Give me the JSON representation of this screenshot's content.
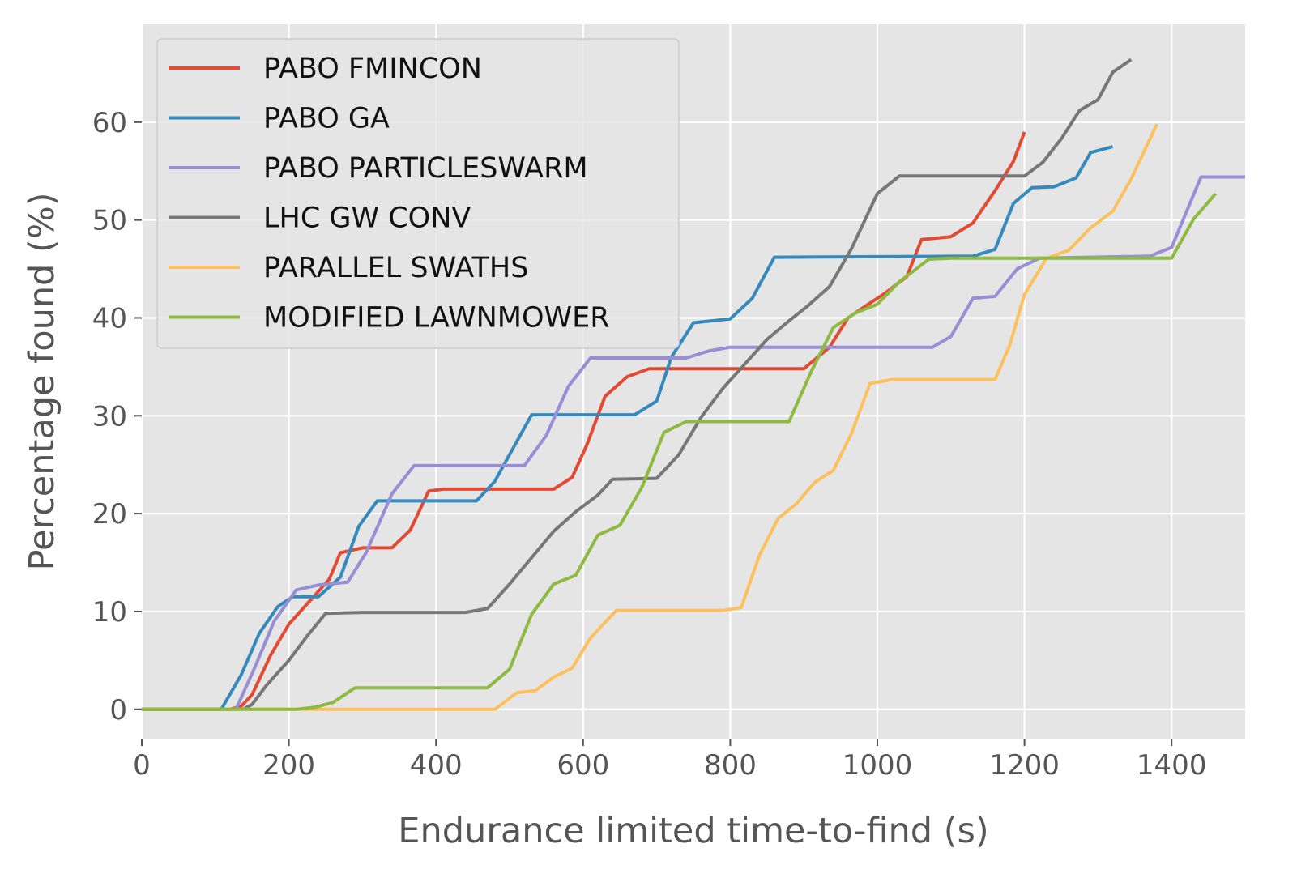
{
  "chart_data": {
    "type": "line",
    "title": "",
    "xlabel": "Endurance limited time-to-find (s)",
    "ylabel": "Percentage found (%)",
    "xlim": [
      0,
      1500
    ],
    "ylim": [
      -3,
      70
    ],
    "xticks": [
      0,
      200,
      400,
      600,
      800,
      1000,
      1200,
      1400
    ],
    "yticks": [
      0,
      10,
      20,
      30,
      40,
      50,
      60
    ],
    "grid": true,
    "style": "ggplot",
    "legend_position": "upper-left",
    "colors": {
      "background": "#e5e5e5",
      "grid": "#ffffff",
      "tick_text": "#555555",
      "label_text": "#555555"
    },
    "series": [
      {
        "name": "PABO FMINCON",
        "color": "#e24a33",
        "points": [
          [
            0,
            0
          ],
          [
            120,
            0
          ],
          [
            135,
            0.3
          ],
          [
            150,
            1.5
          ],
          [
            175,
            5.5
          ],
          [
            200,
            8.7
          ],
          [
            230,
            11.2
          ],
          [
            255,
            13.3
          ],
          [
            270,
            16
          ],
          [
            300,
            16.5
          ],
          [
            340,
            16.5
          ],
          [
            365,
            18.3
          ],
          [
            390,
            22.3
          ],
          [
            410,
            22.5
          ],
          [
            560,
            22.5
          ],
          [
            585,
            23.7
          ],
          [
            605,
            27
          ],
          [
            630,
            32
          ],
          [
            660,
            34
          ],
          [
            690,
            34.8
          ],
          [
            900,
            34.8
          ],
          [
            935,
            37
          ],
          [
            960,
            40
          ],
          [
            990,
            41.5
          ],
          [
            1010,
            42.5
          ],
          [
            1040,
            44.2
          ],
          [
            1060,
            48
          ],
          [
            1100,
            48.3
          ],
          [
            1130,
            49.7
          ],
          [
            1160,
            53
          ],
          [
            1185,
            56
          ],
          [
            1200,
            59
          ]
        ]
      },
      {
        "name": "PABO GA",
        "color": "#348abd",
        "points": [
          [
            0,
            0
          ],
          [
            108,
            0
          ],
          [
            135,
            3.5
          ],
          [
            160,
            7.8
          ],
          [
            185,
            10.5
          ],
          [
            205,
            11.5
          ],
          [
            240,
            11.5
          ],
          [
            270,
            13.5
          ],
          [
            295,
            18.7
          ],
          [
            320,
            21.3
          ],
          [
            455,
            21.3
          ],
          [
            480,
            23.3
          ],
          [
            530,
            30.1
          ],
          [
            670,
            30.1
          ],
          [
            700,
            31.5
          ],
          [
            720,
            36
          ],
          [
            750,
            39.5
          ],
          [
            800,
            39.9
          ],
          [
            830,
            42
          ],
          [
            860,
            46.2
          ],
          [
            1130,
            46.3
          ],
          [
            1160,
            47
          ],
          [
            1185,
            51.7
          ],
          [
            1210,
            53.3
          ],
          [
            1240,
            53.4
          ],
          [
            1270,
            54.3
          ],
          [
            1290,
            56.9
          ],
          [
            1320,
            57.5
          ]
        ]
      },
      {
        "name": "PABO PARTICLESWARM",
        "color": "#988ed5",
        "points": [
          [
            0,
            0
          ],
          [
            128,
            0
          ],
          [
            155,
            4.5
          ],
          [
            180,
            9
          ],
          [
            210,
            12.2
          ],
          [
            240,
            12.7
          ],
          [
            280,
            13
          ],
          [
            305,
            16
          ],
          [
            340,
            22
          ],
          [
            370,
            24.9
          ],
          [
            520,
            24.9
          ],
          [
            550,
            28
          ],
          [
            580,
            33
          ],
          [
            610,
            35.9
          ],
          [
            720,
            35.9
          ],
          [
            740,
            35.9
          ],
          [
            770,
            36.6
          ],
          [
            800,
            37
          ],
          [
            1075,
            37
          ],
          [
            1100,
            38.1
          ],
          [
            1130,
            42
          ],
          [
            1160,
            42.2
          ],
          [
            1190,
            45
          ],
          [
            1220,
            46.1
          ],
          [
            1370,
            46.3
          ],
          [
            1400,
            47.2
          ],
          [
            1440,
            54.4
          ],
          [
            1500,
            54.4
          ]
        ]
      },
      {
        "name": "LHC GW CONV",
        "color": "#777777",
        "points": [
          [
            0,
            0
          ],
          [
            138,
            0
          ],
          [
            150,
            0.5
          ],
          [
            170,
            2.5
          ],
          [
            200,
            5
          ],
          [
            225,
            7.5
          ],
          [
            250,
            9.8
          ],
          [
            300,
            9.9
          ],
          [
            440,
            9.9
          ],
          [
            470,
            10.3
          ],
          [
            500,
            12.8
          ],
          [
            530,
            15.5
          ],
          [
            560,
            18.2
          ],
          [
            590,
            20.2
          ],
          [
            620,
            21.9
          ],
          [
            640,
            23.5
          ],
          [
            700,
            23.6
          ],
          [
            730,
            26
          ],
          [
            760,
            29.8
          ],
          [
            790,
            32.8
          ],
          [
            820,
            35.3
          ],
          [
            850,
            37.8
          ],
          [
            880,
            39.7
          ],
          [
            905,
            41.2
          ],
          [
            935,
            43.2
          ],
          [
            965,
            47.1
          ],
          [
            1000,
            52.7
          ],
          [
            1030,
            54.5
          ],
          [
            1200,
            54.5
          ],
          [
            1225,
            55.9
          ],
          [
            1250,
            58.3
          ],
          [
            1275,
            61.2
          ],
          [
            1300,
            62.3
          ],
          [
            1320,
            65.1
          ],
          [
            1345,
            66.4
          ]
        ]
      },
      {
        "name": "PARALLEL SWATHS",
        "color": "#fbc15e",
        "points": [
          [
            0,
            0
          ],
          [
            480,
            0
          ],
          [
            510,
            1.7
          ],
          [
            535,
            1.9
          ],
          [
            560,
            3.3
          ],
          [
            585,
            4.2
          ],
          [
            610,
            7.3
          ],
          [
            645,
            10.1
          ],
          [
            790,
            10.1
          ],
          [
            815,
            10.4
          ],
          [
            840,
            15.8
          ],
          [
            865,
            19.5
          ],
          [
            890,
            21
          ],
          [
            915,
            23.2
          ],
          [
            940,
            24.4
          ],
          [
            965,
            28.2
          ],
          [
            990,
            33.3
          ],
          [
            1020,
            33.7
          ],
          [
            1160,
            33.7
          ],
          [
            1180,
            37.2
          ],
          [
            1200,
            42.4
          ],
          [
            1230,
            46.1
          ],
          [
            1260,
            46.9
          ],
          [
            1290,
            49.2
          ],
          [
            1320,
            50.9
          ],
          [
            1345,
            54.2
          ],
          [
            1380,
            59.8
          ]
        ]
      },
      {
        "name": "MODIFIED LAWNMOWER",
        "color": "#8eba42",
        "points": [
          [
            0,
            0
          ],
          [
            210,
            0
          ],
          [
            235,
            0.2
          ],
          [
            260,
            0.7
          ],
          [
            290,
            2.2
          ],
          [
            470,
            2.2
          ],
          [
            500,
            4.1
          ],
          [
            530,
            9.7
          ],
          [
            560,
            12.8
          ],
          [
            590,
            13.7
          ],
          [
            620,
            17.8
          ],
          [
            650,
            18.8
          ],
          [
            680,
            22.7
          ],
          [
            710,
            28.3
          ],
          [
            740,
            29.4
          ],
          [
            880,
            29.4
          ],
          [
            910,
            34.5
          ],
          [
            940,
            39
          ],
          [
            970,
            40.5
          ],
          [
            1000,
            41.4
          ],
          [
            1030,
            43.7
          ],
          [
            1070,
            46
          ],
          [
            1100,
            46.1
          ],
          [
            1380,
            46.1
          ],
          [
            1400,
            46.1
          ],
          [
            1430,
            50.1
          ],
          [
            1460,
            52.7
          ]
        ]
      }
    ]
  }
}
